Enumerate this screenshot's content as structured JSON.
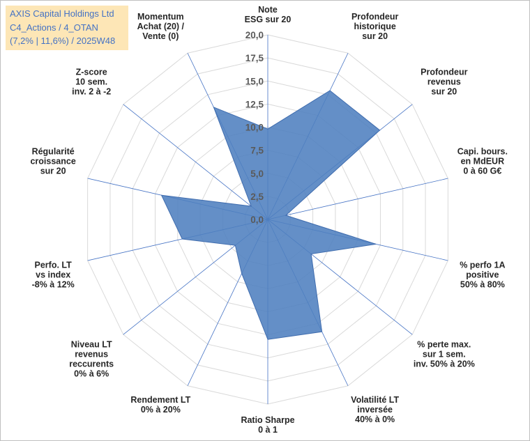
{
  "title_box": {
    "line1": "AXIS Capital Holdings Ltd",
    "line2": "C4_Actions / 4_OTAN",
    "line3": "(7,2% | 11,6%) / 2025W48"
  },
  "chart_data": {
    "type": "radar",
    "rmin": 0,
    "rmax": 20,
    "ticks": [
      0,
      2.5,
      5,
      7.5,
      10,
      12.5,
      15,
      17.5,
      20
    ],
    "tick_labels": [
      "0,0",
      "2,5",
      "5,0",
      "7,5",
      "10,0",
      "12,5",
      "15,0",
      "17,5",
      "20,0"
    ],
    "axes": [
      {
        "label": [
          "Note",
          "ESG sur 20"
        ],
        "value": 9.8
      },
      {
        "label": [
          "Profondeur",
          "historique",
          "sur 20"
        ],
        "value": 15.5
      },
      {
        "label": [
          "Profondeur",
          "revenus",
          "sur 20"
        ],
        "value": 15.5
      },
      {
        "label": [
          "Capi. bours.",
          "en MdEUR",
          "0 à 60 G€"
        ],
        "value": 2.0
      },
      {
        "label": [
          "% perfo 1A",
          "positive",
          "50% à 80%"
        ],
        "value": 12.0
      },
      {
        "label": [
          "% perte max.",
          "sur 1 sem.",
          "inv. 50% à 20%"
        ],
        "value": 6.0
      },
      {
        "label": [
          "Volatilité LT",
          "inversée",
          "40% à 0%"
        ],
        "value": 13.5
      },
      {
        "label": [
          "Ratio Sharpe",
          "0 à 1"
        ],
        "value": 13.0
      },
      {
        "label": [
          "Rendement LT",
          "0% à 20%"
        ],
        "value": 6.5
      },
      {
        "label": [
          "Niveau LT",
          "revenus",
          "reccurents",
          "0% à 6%"
        ],
        "value": 4.5
      },
      {
        "label": [
          "Perfo. LT",
          "vs index",
          "-8% à 12%"
        ],
        "value": 9.5
      },
      {
        "label": [
          "Régularité",
          "croissance",
          "sur 20"
        ],
        "value": 11.8
      },
      {
        "label": [
          "Z-score",
          "10 sem.",
          "inv. 2 à -2"
        ],
        "value": 2.3
      },
      {
        "label": [
          "Momentum",
          "Achat (20) /",
          "Vente (0)"
        ],
        "value": 13.5
      }
    ],
    "colors": {
      "fill": "#4f7fbf",
      "stroke": "#3f6cae",
      "grid": "#d9d9d9",
      "spoke": "#4472c4"
    }
  }
}
